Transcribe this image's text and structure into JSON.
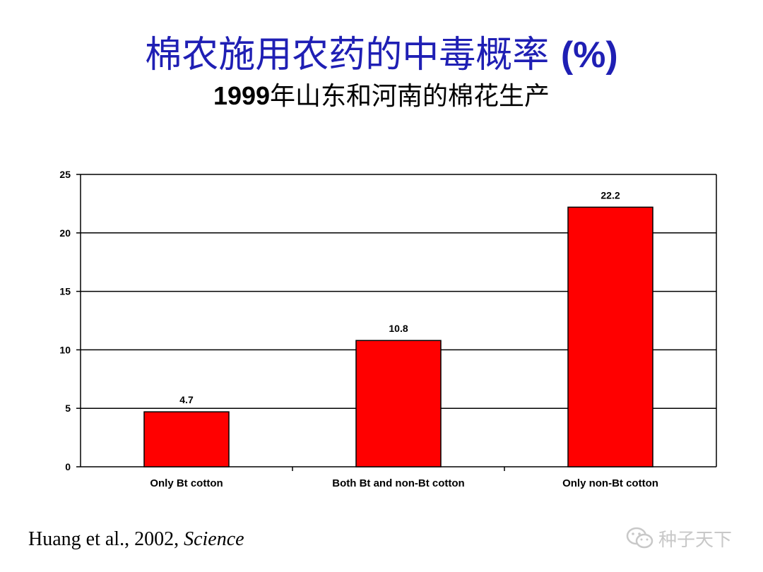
{
  "slide": {
    "title_main": "棉农施用农药的中毒概率",
    "title_suffix": "(%)",
    "subtitle_year": "1999",
    "subtitle_rest": "年山东和河南的棉花生产",
    "citation_text": "Huang et al., 2002, ",
    "citation_journal": "Science",
    "watermark_text": "种子天下",
    "watermark_icon": "wechat-icon"
  },
  "chart_data": {
    "type": "bar",
    "categories": [
      "Only Bt cotton",
      "Both Bt and non-Bt cotton",
      "Only non-Bt cotton"
    ],
    "values": [
      4.7,
      10.8,
      22.2
    ],
    "value_labels": [
      "4.7",
      "10.8",
      "22.2"
    ],
    "ylim": [
      0,
      25
    ],
    "yticks": [
      0,
      5,
      10,
      15,
      20,
      25
    ],
    "grid": true,
    "legend": "none",
    "bar_color": "#ff0000",
    "bar_edge_color": "#000000",
    "xlabel": "",
    "ylabel": ""
  }
}
